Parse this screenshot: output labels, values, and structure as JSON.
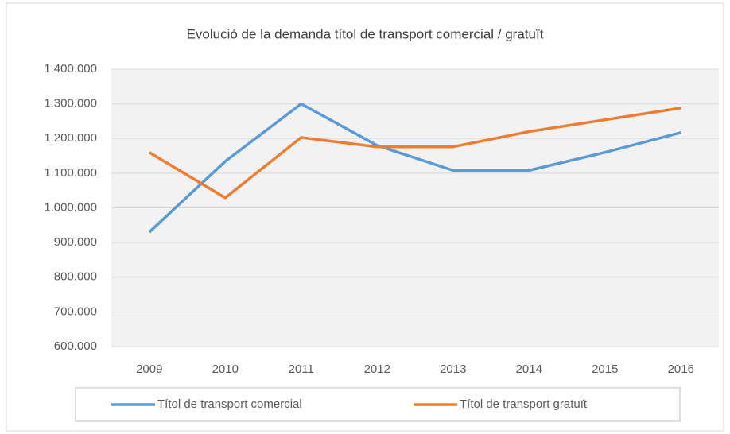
{
  "chart_data": {
    "type": "line",
    "title": "Evolució de la demanda títol de transport comercial / gratuït",
    "categories": [
      "2009",
      "2010",
      "2011",
      "2012",
      "2013",
      "2014",
      "2015",
      "2016"
    ],
    "series": [
      {
        "name": "Títol de transport comercial",
        "color": "#5b9bd5",
        "values": [
          930000,
          1134000,
          1300000,
          1180000,
          1108000,
          1108000,
          1160000,
          1217000
        ]
      },
      {
        "name": "Títol de transport gratuït",
        "color": "#ed7d31",
        "values": [
          1160000,
          1029000,
          1203000,
          1176000,
          1176000,
          1220000,
          1254000,
          1288000
        ]
      }
    ],
    "ylim": [
      600000,
      1400000
    ],
    "yticks": [
      {
        "value": 600000,
        "label": "600.000"
      },
      {
        "value": 700000,
        "label": "700.000"
      },
      {
        "value": 800000,
        "label": "800.000"
      },
      {
        "value": 900000,
        "label": "900.000"
      },
      {
        "value": 1000000,
        "label": "1.000.000"
      },
      {
        "value": 1100000,
        "label": "1.100.000"
      },
      {
        "value": 1200000,
        "label": "1.200.000"
      },
      {
        "value": 1300000,
        "label": "1.300.000"
      },
      {
        "value": 1400000,
        "label": "1.400.000"
      }
    ],
    "grid": true,
    "legend": "bottom"
  }
}
